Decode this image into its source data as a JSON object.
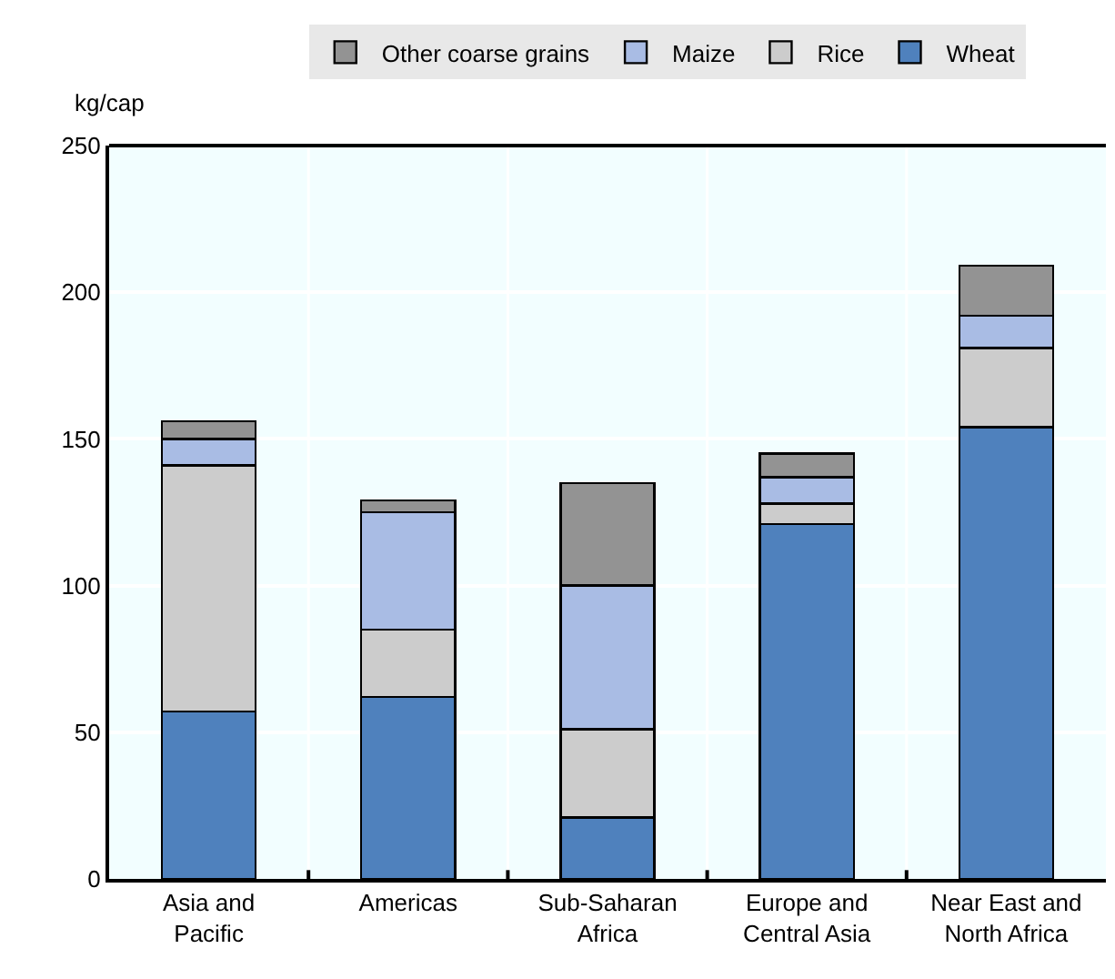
{
  "chart_data": {
    "type": "bar",
    "stacked": true,
    "ylabel": "kg/cap",
    "categories": [
      "Asia and\nPacific",
      "Americas",
      "Sub-Saharan\nAfrica",
      "Europe and\nCentral Asia",
      "Near East and\nNorth Africa"
    ],
    "series": [
      {
        "name": "Wheat",
        "color": "#4f81bd",
        "values": [
          57,
          62,
          21,
          121,
          154
        ]
      },
      {
        "name": "Rice",
        "color": "#cccccc",
        "values": [
          84,
          23,
          30,
          7,
          27
        ]
      },
      {
        "name": "Maize",
        "color": "#a9bce4",
        "values": [
          9,
          40,
          49,
          9,
          11
        ]
      },
      {
        "name": "Other coarse grains",
        "color": "#939393",
        "values": [
          6,
          4,
          35,
          8,
          17
        ]
      }
    ],
    "ylim": [
      0,
      250
    ],
    "yticks": [
      0,
      50,
      100,
      150,
      200,
      250
    ],
    "grid": true,
    "legend": "top"
  }
}
